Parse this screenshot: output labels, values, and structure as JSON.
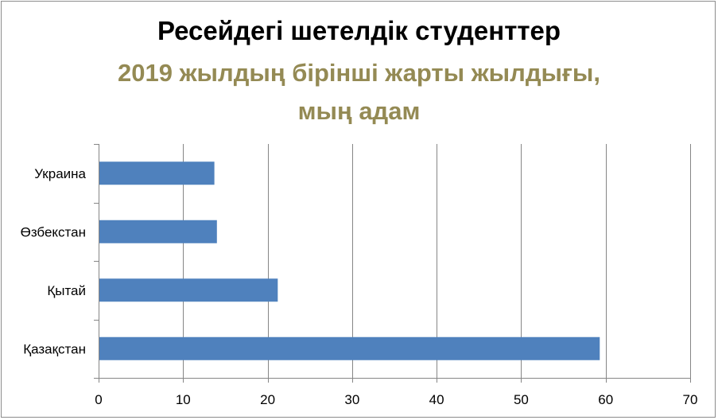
{
  "chart_data": {
    "type": "bar",
    "orientation": "horizontal",
    "title": "Ресейдегі шетелдік студенттер",
    "subtitle_line1": "2019 жылдың бірінші жарты жылдығы,",
    "subtitle_line2": "мың адам",
    "categories": [
      "Украина",
      "Өзбекстан",
      "Қытай",
      "Қазақстан"
    ],
    "values": [
      13.7,
      14.0,
      21.2,
      59.3
    ],
    "xlim": [
      0,
      70
    ],
    "xticks": [
      "0",
      "10",
      "20",
      "30",
      "40",
      "50",
      "60",
      "70"
    ],
    "grid": "vertical",
    "legend": "none"
  },
  "colors": {
    "bar": "#4f81bd",
    "subtitle": "#948a54",
    "grid": "#868686",
    "text": "#000000"
  }
}
